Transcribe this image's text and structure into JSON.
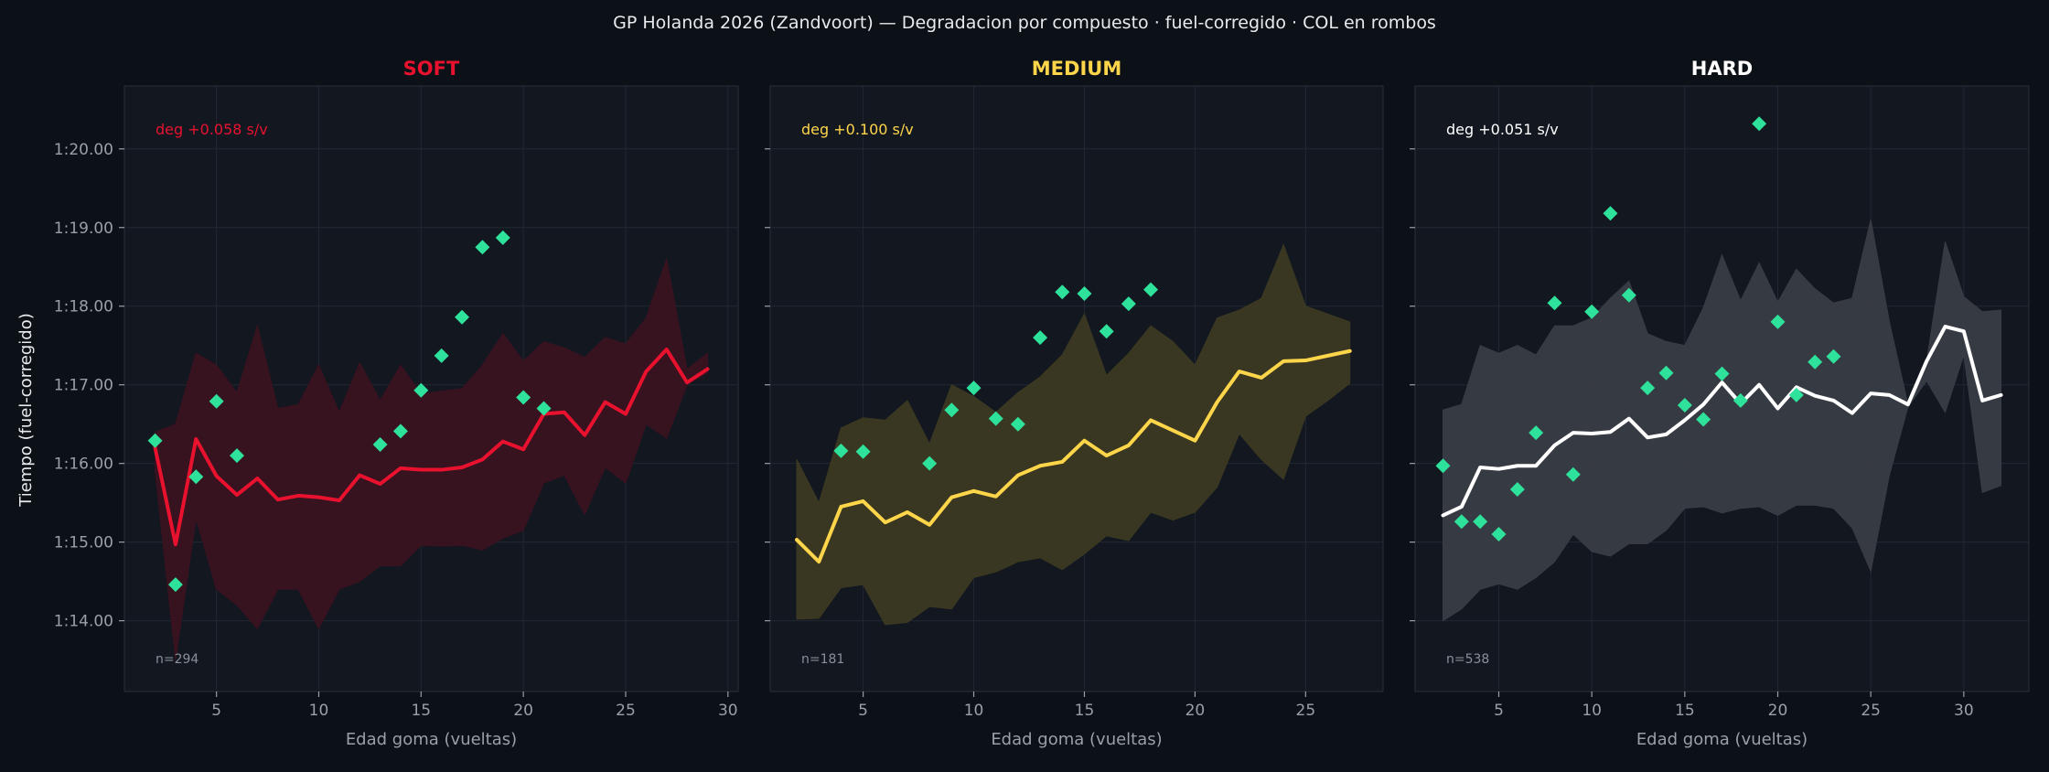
{
  "figure": {
    "title": "GP Holanda 2026 (Zandvoort) — Degradacion por compuesto · fuel-corregido · COL en rombos",
    "ylabel": "Tiempo (fuel-corregido)",
    "xlabel": "Edad goma (vueltas)"
  },
  "colors": {
    "background": "#0c1017",
    "panel": "#121720",
    "grid": "#222833",
    "tick_text": "#9aa0a8",
    "title_text": "#e8eaee",
    "col_marker": "#2fe29b",
    "n_text": "#8a9099"
  },
  "chart_data": [
    {
      "type": "line",
      "compound": "SOFT",
      "title": "SOFT",
      "color": "#e8122f",
      "band_color": "#3a1220",
      "deg_label": "deg +0.058 s/v",
      "n_label": "n=294",
      "xlabel": "Edad goma (vueltas)",
      "xlim": [
        0.5,
        30.5
      ],
      "ylim": [
        73.1,
        80.8
      ],
      "xticks": [
        5,
        10,
        15,
        20,
        25,
        30
      ],
      "yticks": [
        74,
        75,
        76,
        77,
        78,
        79,
        80
      ],
      "ytick_labels": [
        "1:14.00",
        "1:15.00",
        "1:16.00",
        "1:17.00",
        "1:18.00",
        "1:19.00",
        "1:20.00"
      ],
      "median": {
        "x": [
          2,
          3,
          4,
          5,
          6,
          7,
          8,
          9,
          10,
          11,
          12,
          13,
          14,
          15,
          16,
          17,
          18,
          19,
          20,
          21,
          22,
          23,
          24,
          25,
          26,
          27,
          28,
          29
        ],
        "y": [
          76.2,
          74.97,
          76.31,
          75.84,
          75.6,
          75.81,
          75.54,
          75.59,
          75.57,
          75.53,
          75.85,
          75.74,
          75.94,
          75.92,
          75.92,
          75.95,
          76.05,
          76.28,
          76.18,
          76.63,
          76.65,
          76.36,
          76.78,
          76.63,
          77.17,
          77.45,
          77.03,
          77.2
        ]
      },
      "band_upper": [
        76.4,
        76.5,
        77.4,
        77.25,
        76.9,
        77.75,
        76.7,
        76.75,
        77.25,
        76.65,
        77.28,
        76.8,
        77.25,
        76.88,
        76.92,
        76.95,
        77.25,
        77.65,
        77.3,
        77.55,
        77.47,
        77.35,
        77.6,
        77.52,
        77.85,
        78.6,
        77.2,
        77.4
      ],
      "band_lower": [
        75.9,
        73.5,
        75.3,
        74.4,
        74.2,
        73.9,
        74.4,
        74.4,
        73.9,
        74.4,
        74.5,
        74.7,
        74.7,
        74.96,
        74.95,
        74.96,
        74.9,
        75.05,
        75.15,
        75.75,
        75.85,
        75.35,
        75.95,
        75.75,
        76.5,
        76.32,
        77.0,
        77.15
      ],
      "col_points": {
        "x": [
          2,
          3,
          4,
          5,
          6,
          13,
          14,
          15,
          16,
          17,
          18,
          19,
          20,
          21
        ],
        "y": [
          76.29,
          74.46,
          75.83,
          76.79,
          76.1,
          76.24,
          76.41,
          76.93,
          77.37,
          77.86,
          78.75,
          78.87,
          76.84,
          76.7
        ]
      }
    },
    {
      "type": "line",
      "compound": "MEDIUM",
      "title": "MEDIUM",
      "color": "#ffd54a",
      "band_color": "#3c3922",
      "deg_label": "deg +0.100 s/v",
      "n_label": "n=181",
      "xlabel": "Edad goma (vueltas)",
      "xlim": [
        0.8,
        28.5
      ],
      "ylim": [
        73.1,
        80.8
      ],
      "xticks": [
        5,
        10,
        15,
        20,
        25
      ],
      "yticks": [
        74,
        75,
        76,
        77,
        78,
        79,
        80
      ],
      "ytick_labels": [
        "",
        "",
        "",
        "",
        "",
        "",
        ""
      ],
      "median": {
        "x": [
          2,
          3,
          4,
          5,
          6,
          7,
          8,
          9,
          10,
          11,
          12,
          13,
          14,
          15,
          16,
          17,
          18,
          19,
          20,
          21,
          22,
          23,
          24,
          25,
          26,
          27
        ],
        "y": [
          75.03,
          74.75,
          75.45,
          75.52,
          75.25,
          75.38,
          75.22,
          75.57,
          75.65,
          75.58,
          75.85,
          75.97,
          76.02,
          76.29,
          76.1,
          76.23,
          76.55,
          76.42,
          76.29,
          76.78,
          77.17,
          77.09,
          77.3,
          77.31,
          77.37,
          77.43
        ]
      },
      "band_upper": [
        76.05,
        75.5,
        76.45,
        76.58,
        76.55,
        76.8,
        76.25,
        77.0,
        76.85,
        76.65,
        76.9,
        77.1,
        77.38,
        77.9,
        77.12,
        77.4,
        77.75,
        77.55,
        77.25,
        77.85,
        77.95,
        78.1,
        78.78,
        78.0,
        77.9,
        77.8
      ],
      "band_lower": [
        74.02,
        74.03,
        74.42,
        74.46,
        73.95,
        73.98,
        74.18,
        74.15,
        74.55,
        74.62,
        74.75,
        74.8,
        74.65,
        74.85,
        75.08,
        75.02,
        75.38,
        75.28,
        75.38,
        75.7,
        76.38,
        76.05,
        75.8,
        76.6,
        76.8,
        77.02
      ],
      "col_points": {
        "x": [
          4,
          5,
          8,
          9,
          10,
          11,
          12,
          13,
          14,
          15,
          16,
          17,
          18
        ],
        "y": [
          76.16,
          76.15,
          76.0,
          76.68,
          76.96,
          76.57,
          76.5,
          77.6,
          78.18,
          78.16,
          77.68,
          78.03,
          78.21
        ]
      }
    },
    {
      "type": "line",
      "compound": "HARD",
      "title": "HARD",
      "color": "#ffffff",
      "band_color": "#393c44",
      "deg_label": "deg +0.051 s/v",
      "n_label": "n=538",
      "xlabel": "Edad goma (vueltas)",
      "xlim": [
        0.5,
        33.5
      ],
      "ylim": [
        73.1,
        80.8
      ],
      "xticks": [
        5,
        10,
        15,
        20,
        25,
        30
      ],
      "yticks": [
        74,
        75,
        76,
        77,
        78,
        79,
        80
      ],
      "ytick_labels": [
        "",
        "",
        "",
        "",
        "",
        "",
        ""
      ],
      "median": {
        "x": [
          2,
          3,
          4,
          5,
          6,
          7,
          8,
          9,
          10,
          11,
          12,
          13,
          14,
          15,
          16,
          17,
          18,
          19,
          20,
          21,
          22,
          23,
          24,
          25,
          26,
          27,
          28,
          29,
          30,
          31,
          32
        ],
        "y": [
          75.34,
          75.45,
          75.95,
          75.93,
          75.97,
          75.97,
          76.23,
          76.39,
          76.38,
          76.4,
          76.57,
          76.33,
          76.37,
          76.55,
          76.75,
          77.03,
          76.76,
          77.0,
          76.7,
          76.97,
          76.86,
          76.8,
          76.64,
          76.89,
          76.87,
          76.75,
          77.3,
          77.74,
          77.68,
          76.8,
          76.87
        ]
      },
      "band_upper": [
        76.68,
        76.75,
        77.5,
        77.4,
        77.5,
        77.38,
        77.75,
        77.75,
        77.85,
        78.1,
        78.32,
        77.65,
        77.55,
        77.5,
        77.98,
        78.65,
        78.07,
        78.55,
        78.05,
        78.47,
        78.22,
        78.04,
        78.1,
        79.1,
        77.8,
        76.75,
        77.3,
        78.82,
        78.12,
        77.93,
        77.95
      ],
      "band_lower": [
        74.0,
        74.15,
        74.4,
        74.47,
        74.4,
        74.55,
        74.75,
        75.1,
        74.88,
        74.82,
        74.98,
        74.98,
        75.15,
        75.43,
        75.45,
        75.37,
        75.43,
        75.45,
        75.34,
        75.47,
        75.47,
        75.43,
        75.18,
        74.63,
        75.85,
        76.72,
        77.05,
        76.65,
        77.38,
        75.63,
        75.72
      ],
      "col_points": {
        "x": [
          2,
          3,
          4,
          5,
          6,
          7,
          8,
          9,
          10,
          11,
          12,
          13,
          14,
          15,
          16,
          17,
          18,
          19,
          20,
          21,
          22,
          23
        ],
        "y": [
          75.97,
          75.26,
          75.26,
          75.1,
          75.67,
          76.39,
          78.04,
          75.86,
          77.93,
          79.18,
          78.14,
          76.96,
          77.15,
          76.74,
          76.56,
          77.14,
          76.8,
          80.32,
          77.8,
          76.87,
          77.29,
          77.36
        ]
      }
    }
  ]
}
